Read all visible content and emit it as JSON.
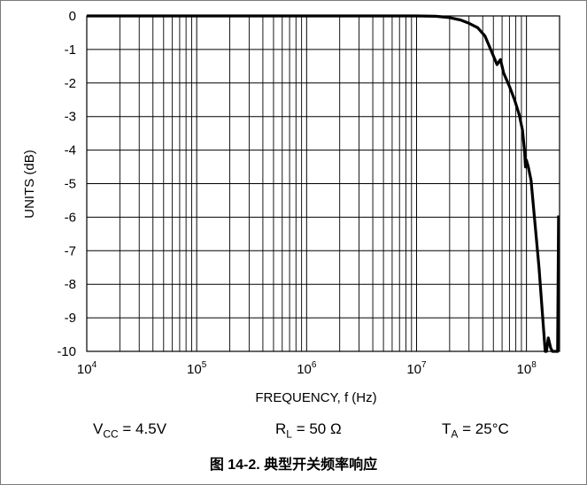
{
  "chart_data": {
    "type": "line",
    "title": "",
    "xlabel": "FREQUENCY, f (Hz)",
    "ylabel": "UNITS (dB)",
    "xscale": "log",
    "xlim": [
      10000,
      200000000
    ],
    "ylim": [
      -10,
      0
    ],
    "x_tick_labels": [
      {
        "base": "10",
        "exp": "4"
      },
      {
        "base": "10",
        "exp": "5"
      },
      {
        "base": "10",
        "exp": "6"
      },
      {
        "base": "10",
        "exp": "7"
      },
      {
        "base": "10",
        "exp": "8"
      }
    ],
    "y_tick_labels": [
      "0",
      "-1",
      "-2",
      "-3",
      "-4",
      "-5",
      "-6",
      "-7",
      "-8",
      "-9",
      "-10"
    ],
    "grid": true,
    "line_color": "#000000",
    "series": [
      {
        "x": [
          10000,
          100000,
          1000000,
          10000000,
          15000000,
          20000000,
          25000000,
          30000000,
          36000000,
          42000000,
          48000000,
          54000000,
          58000000,
          62000000,
          70000000,
          78000000,
          86000000,
          92000000,
          96000000,
          98000000,
          100000000,
          104000000,
          110000000,
          130000000,
          148000000,
          152000000,
          158000000,
          166000000,
          172000000,
          178000000,
          186000000,
          192000000,
          196000000
        ],
        "y": [
          0,
          0,
          0,
          0,
          -0.01,
          -0.05,
          -0.12,
          -0.22,
          -0.35,
          -0.6,
          -1.05,
          -1.45,
          -1.3,
          -1.7,
          -2.1,
          -2.5,
          -2.95,
          -3.4,
          -4.0,
          -4.5,
          -4.3,
          -4.5,
          -4.9,
          -7.5,
          -10.0,
          -10.0,
          -9.6,
          -9.9,
          -10.0,
          -10.0,
          -10.0,
          -10.0,
          -5.95
        ]
      }
    ]
  },
  "conditions": {
    "vcc": {
      "main": "V",
      "sub": "CC",
      "rest": " = 4.5V"
    },
    "rl": {
      "main": "R",
      "sub": "L",
      "rest": " = 50 Ω"
    },
    "ta": {
      "main": "T",
      "sub": "A",
      "rest": " = 25°C"
    }
  },
  "caption": "图 14-2. 典型开关频率响应"
}
